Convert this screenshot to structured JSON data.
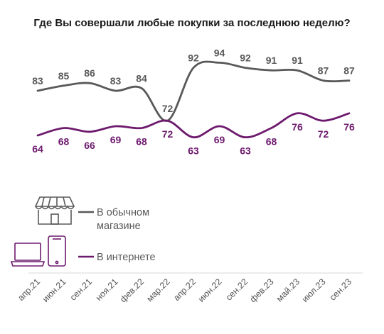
{
  "chart_data": {
    "type": "line",
    "title": "Где Вы совершали любые покупки за последнюю неделю?",
    "categories": [
      "апр.21",
      "июн.21",
      "сен.21",
      "ноя.21",
      "фев.22",
      "мар.22",
      "апр.22",
      "июн.22",
      "сен.22",
      "фев.23",
      "май.23",
      "июл.23",
      "сен.23"
    ],
    "series": [
      {
        "name": "В обычном магазине",
        "legend_lines": [
          "В обычном",
          "магазине"
        ],
        "icon": "shop-icon",
        "color": "#595959",
        "values": [
          83,
          85,
          86,
          83,
          84,
          72,
          92,
          94,
          92,
          91,
          91,
          87,
          87
        ]
      },
      {
        "name": "В интернете",
        "legend_lines": [
          "В интернете"
        ],
        "icon": "devices-icon",
        "color": "#6d1a6d",
        "values": [
          64,
          68,
          66,
          69,
          68,
          72,
          63,
          69,
          63,
          68,
          76,
          72,
          76
        ]
      }
    ]
  }
}
